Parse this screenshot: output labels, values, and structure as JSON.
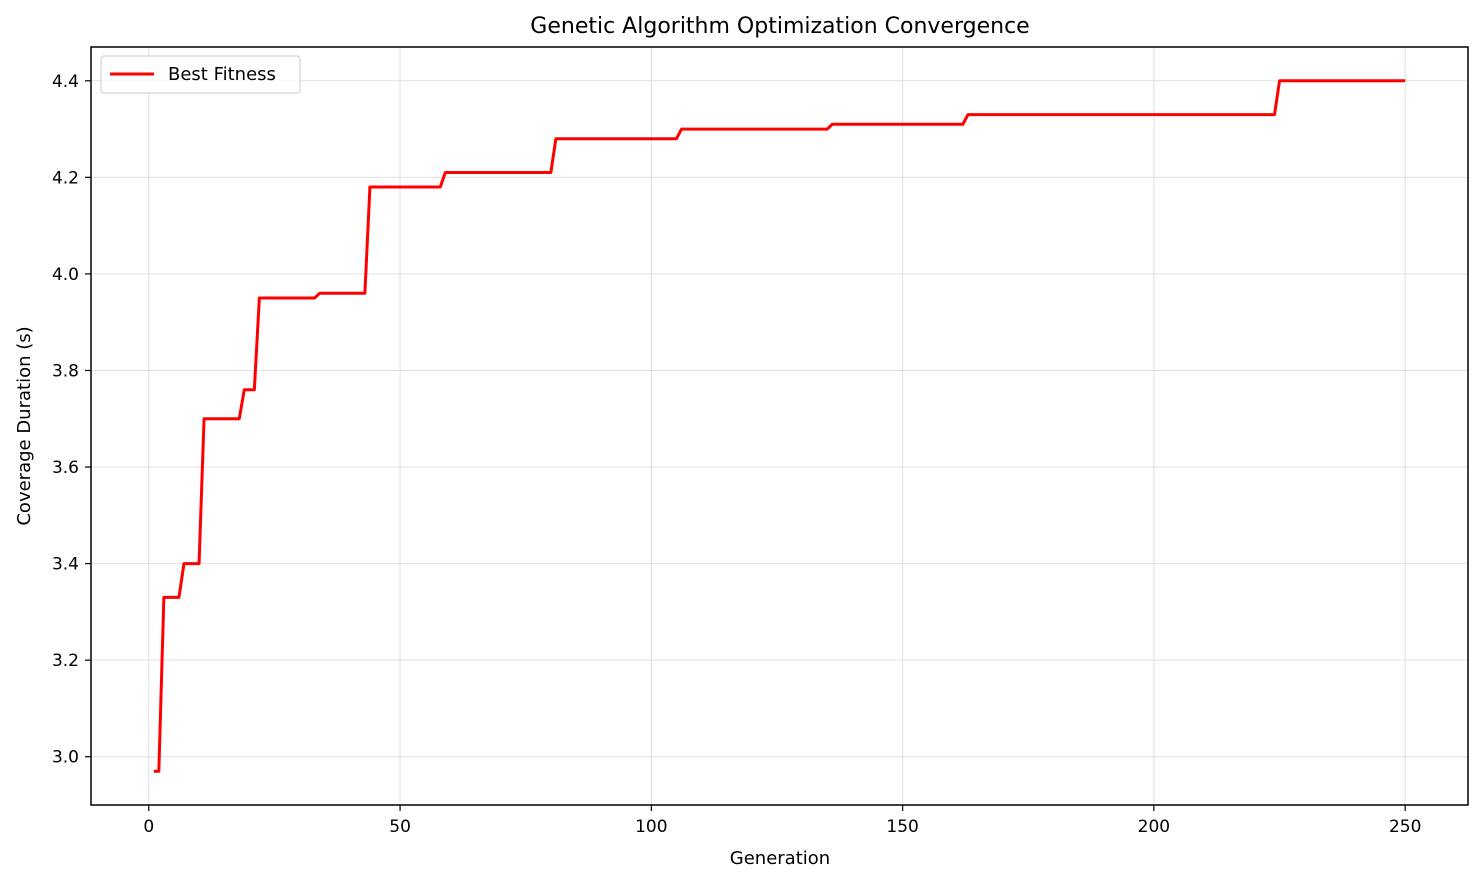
{
  "chart_data": {
    "type": "line",
    "title": "Genetic Algorithm Optimization Convergence",
    "xlabel": "Generation",
    "ylabel": "Coverage Duration (s)",
    "xlim": [
      -11.5,
      262.5
    ],
    "ylim": [
      2.9,
      4.47
    ],
    "xticks": [
      0,
      50,
      100,
      150,
      200,
      250
    ],
    "yticks": [
      3.0,
      3.2,
      3.4,
      3.6,
      3.8,
      4.0,
      4.2,
      4.4
    ],
    "grid": true,
    "legend_position": "top-left",
    "series": [
      {
        "name": "Best Fitness",
        "color": "#ff0000",
        "points": [
          [
            1,
            2.97
          ],
          [
            2,
            2.97
          ],
          [
            3,
            3.33
          ],
          [
            6,
            3.33
          ],
          [
            7,
            3.4
          ],
          [
            10,
            3.4
          ],
          [
            11,
            3.7
          ],
          [
            18,
            3.7
          ],
          [
            19,
            3.76
          ],
          [
            21,
            3.76
          ],
          [
            22,
            3.95
          ],
          [
            33,
            3.95
          ],
          [
            34,
            3.96
          ],
          [
            43,
            3.96
          ],
          [
            44,
            4.18
          ],
          [
            58,
            4.18
          ],
          [
            59,
            4.21
          ],
          [
            80,
            4.21
          ],
          [
            81,
            4.28
          ],
          [
            105,
            4.28
          ],
          [
            106,
            4.3
          ],
          [
            135,
            4.3
          ],
          [
            136,
            4.31
          ],
          [
            162,
            4.31
          ],
          [
            163,
            4.33
          ],
          [
            224,
            4.33
          ],
          [
            225,
            4.4
          ],
          [
            250,
            4.4
          ]
        ]
      }
    ]
  }
}
